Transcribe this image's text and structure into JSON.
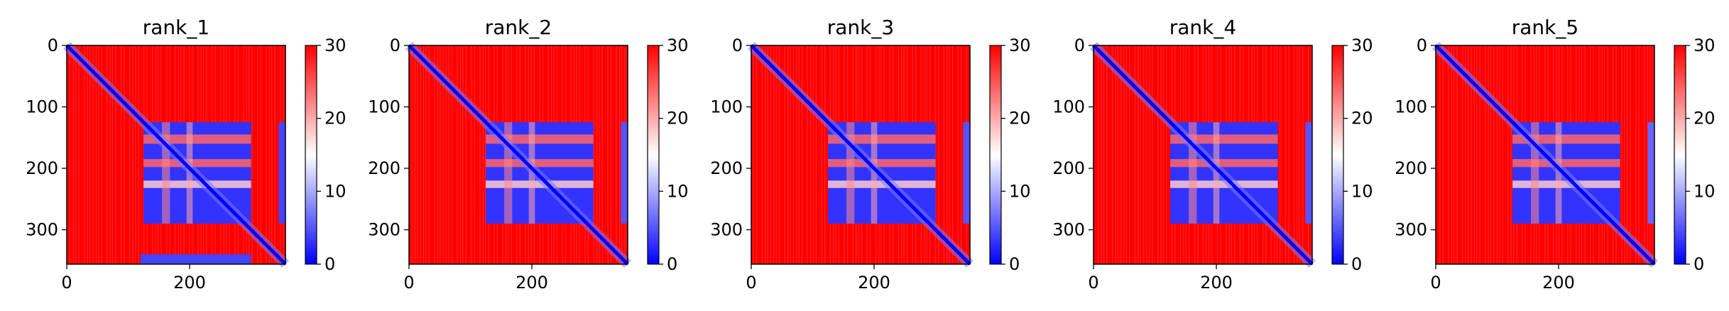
{
  "figure": {
    "panel_count": 5
  },
  "colormap": {
    "name": "bwr",
    "low": "#0000ff",
    "mid": "#ffffff",
    "high": "#ff0000"
  },
  "chart_data": [
    {
      "type": "heatmap",
      "title": "rank_1",
      "matrix_size": 356,
      "x_ticks": [
        0,
        200
      ],
      "y_ticks": [
        0,
        100,
        200,
        300
      ],
      "xlim": [
        0,
        356
      ],
      "ylim": [
        356,
        0
      ],
      "colorbar": {
        "min": 0,
        "max": 30,
        "ticks": [
          0,
          10,
          20,
          30
        ]
      },
      "value_description": "distance-like heatmap; low values (blue) along diagonal and in blocks",
      "diagonal_value": 0,
      "background_value": 30,
      "blocks": [
        {
          "rows": [
            125,
            290
          ],
          "cols": [
            125,
            300
          ],
          "value": 3
        },
        {
          "rows": [
            340,
            356
          ],
          "cols": [
            120,
            300
          ],
          "value": 4
        },
        {
          "rows": [
            125,
            290
          ],
          "cols": [
            345,
            356
          ],
          "value": 4
        }
      ],
      "gaps": [
        {
          "rows": [
            145,
            160
          ],
          "value": 24
        },
        {
          "rows": [
            185,
            198
          ],
          "value": 24
        },
        {
          "rows": [
            220,
            232
          ],
          "value": 18
        },
        {
          "cols": [
            155,
            168
          ],
          "value": 22
        },
        {
          "cols": [
            195,
            205
          ],
          "value": 20
        }
      ]
    },
    {
      "type": "heatmap",
      "title": "rank_2",
      "matrix_size": 356,
      "x_ticks": [
        0,
        200
      ],
      "y_ticks": [
        0,
        100,
        200,
        300
      ],
      "xlim": [
        0,
        356
      ],
      "ylim": [
        356,
        0
      ],
      "colorbar": {
        "min": 0,
        "max": 30,
        "ticks": [
          0,
          10,
          20,
          30
        ]
      },
      "diagonal_value": 0,
      "background_value": 30,
      "blocks": [
        {
          "rows": [
            125,
            290
          ],
          "cols": [
            125,
            300
          ],
          "value": 3
        },
        {
          "rows": [
            125,
            290
          ],
          "cols": [
            345,
            356
          ],
          "value": 5
        }
      ],
      "gaps": [
        {
          "rows": [
            145,
            160
          ],
          "value": 24
        },
        {
          "rows": [
            185,
            198
          ],
          "value": 24
        },
        {
          "rows": [
            220,
            232
          ],
          "value": 18
        },
        {
          "cols": [
            155,
            168
          ],
          "value": 22
        },
        {
          "cols": [
            195,
            205
          ],
          "value": 20
        }
      ]
    },
    {
      "type": "heatmap",
      "title": "rank_3",
      "matrix_size": 356,
      "x_ticks": [
        0,
        200
      ],
      "y_ticks": [
        0,
        100,
        200,
        300
      ],
      "xlim": [
        0,
        356
      ],
      "ylim": [
        356,
        0
      ],
      "colorbar": {
        "min": 0,
        "max": 30,
        "ticks": [
          0,
          10,
          20,
          30
        ]
      },
      "diagonal_value": 0,
      "background_value": 30,
      "blocks": [
        {
          "rows": [
            125,
            290
          ],
          "cols": [
            125,
            300
          ],
          "value": 3
        },
        {
          "rows": [
            125,
            290
          ],
          "cols": [
            345,
            356
          ],
          "value": 5
        }
      ],
      "gaps": [
        {
          "rows": [
            145,
            160
          ],
          "value": 24
        },
        {
          "rows": [
            185,
            198
          ],
          "value": 24
        },
        {
          "rows": [
            220,
            232
          ],
          "value": 18
        },
        {
          "cols": [
            155,
            168
          ],
          "value": 22
        },
        {
          "cols": [
            195,
            205
          ],
          "value": 20
        }
      ]
    },
    {
      "type": "heatmap",
      "title": "rank_4",
      "matrix_size": 356,
      "x_ticks": [
        0,
        200
      ],
      "y_ticks": [
        0,
        100,
        200,
        300
      ],
      "xlim": [
        0,
        356
      ],
      "ylim": [
        356,
        0
      ],
      "colorbar": {
        "min": 0,
        "max": 30,
        "ticks": [
          0,
          10,
          20,
          30
        ]
      },
      "diagonal_value": 0,
      "background_value": 30,
      "blocks": [
        {
          "rows": [
            125,
            290
          ],
          "cols": [
            125,
            300
          ],
          "value": 3
        },
        {
          "rows": [
            125,
            290
          ],
          "cols": [
            345,
            356
          ],
          "value": 5
        }
      ],
      "gaps": [
        {
          "rows": [
            145,
            160
          ],
          "value": 24
        },
        {
          "rows": [
            185,
            198
          ],
          "value": 24
        },
        {
          "rows": [
            220,
            232
          ],
          "value": 18
        },
        {
          "cols": [
            155,
            168
          ],
          "value": 22
        },
        {
          "cols": [
            195,
            205
          ],
          "value": 20
        }
      ]
    },
    {
      "type": "heatmap",
      "title": "rank_5",
      "matrix_size": 356,
      "x_ticks": [
        0,
        200
      ],
      "y_ticks": [
        0,
        100,
        200,
        300
      ],
      "xlim": [
        0,
        356
      ],
      "ylim": [
        356,
        0
      ],
      "colorbar": {
        "min": 0,
        "max": 30,
        "ticks": [
          0,
          10,
          20,
          30
        ]
      },
      "diagonal_value": 0,
      "background_value": 30,
      "blocks": [
        {
          "rows": [
            125,
            290
          ],
          "cols": [
            125,
            300
          ],
          "value": 3
        },
        {
          "rows": [
            125,
            290
          ],
          "cols": [
            345,
            356
          ],
          "value": 6
        }
      ],
      "gaps": [
        {
          "rows": [
            145,
            160
          ],
          "value": 24
        },
        {
          "rows": [
            185,
            198
          ],
          "value": 24
        },
        {
          "rows": [
            220,
            232
          ],
          "value": 18
        },
        {
          "cols": [
            155,
            168
          ],
          "value": 22
        },
        {
          "cols": [
            195,
            205
          ],
          "value": 20
        }
      ]
    }
  ]
}
